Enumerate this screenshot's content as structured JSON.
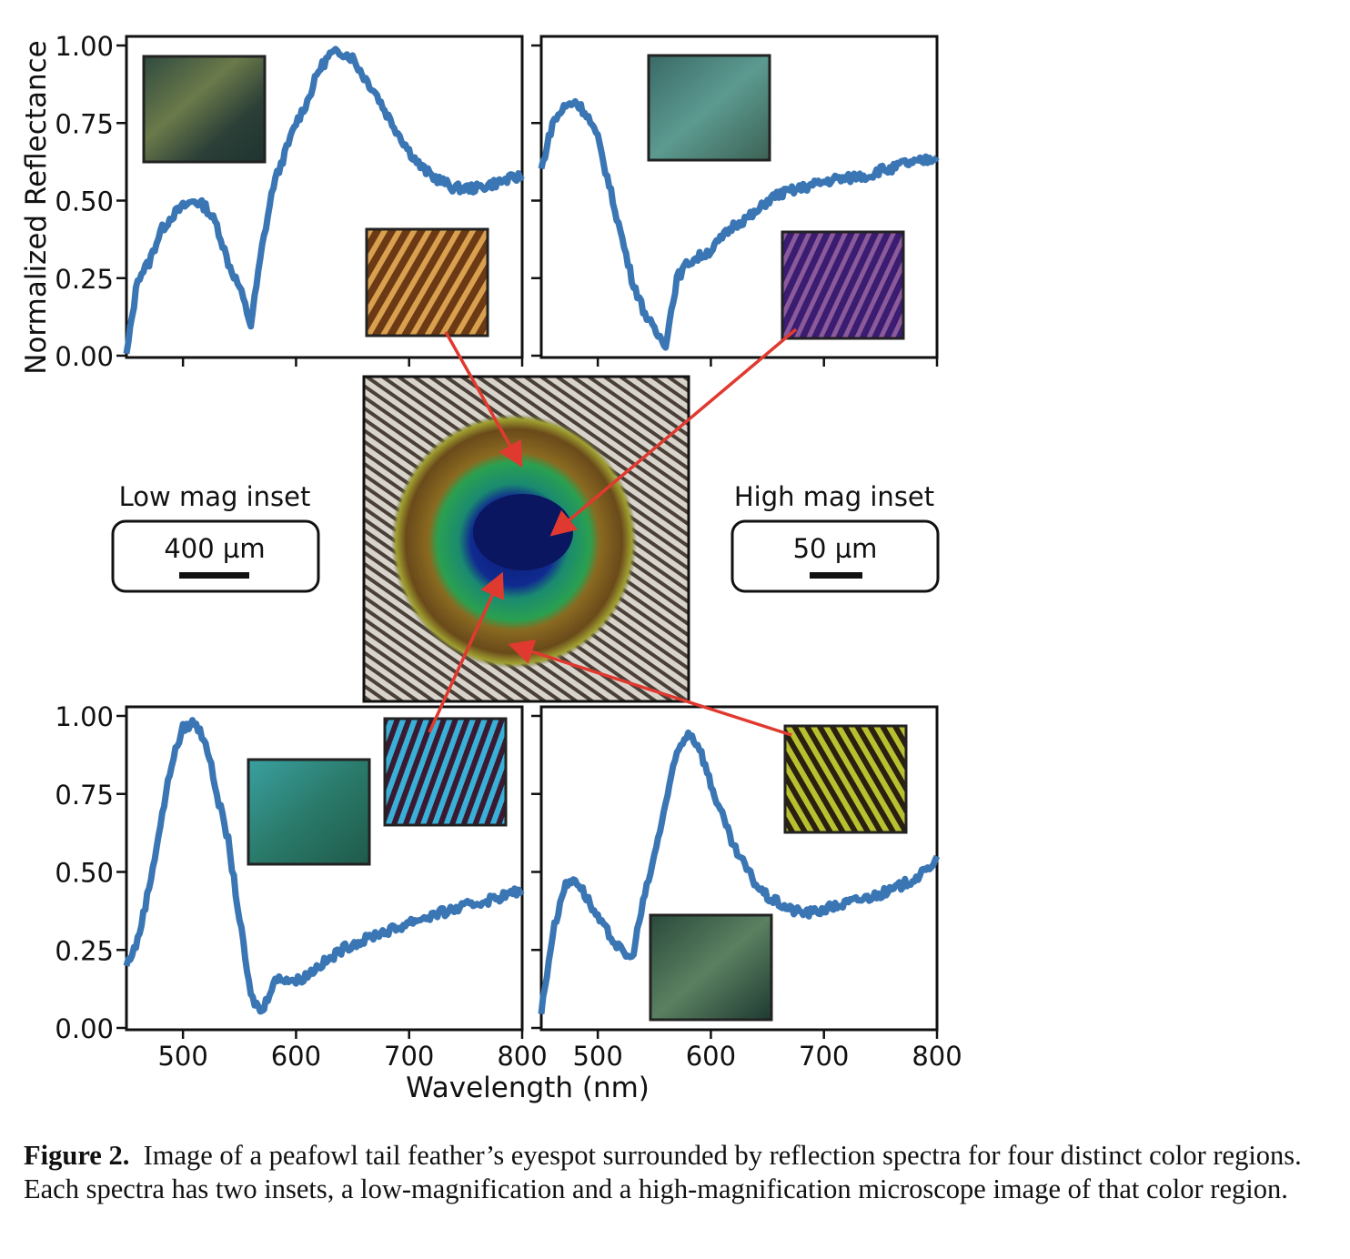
{
  "figure": {
    "center_image": "peafowl tail feather eyespot photograph",
    "low_mag": {
      "title": "Low mag inset",
      "scale": "400 µm"
    },
    "high_mag": {
      "title": "High mag inset",
      "scale": "50 µm"
    },
    "colors": {
      "line": "#3a76b4",
      "arrow": "#e03a30"
    }
  },
  "caption": {
    "label": "Figure 2.",
    "text": "Image of a peafowl tail feather’s eyespot surrounded by reflection spectra for four distinct color regions. Each spectra has two insets, a low-magnification and a high-magnification microscope image of that color region."
  },
  "chart_data": {
    "type": "line",
    "xlabel": "Wavelength (nm)",
    "ylabel": "Normalized Reflectance",
    "xlim": [
      450,
      800
    ],
    "ylim": [
      0,
      1.03
    ],
    "xticks": [
      "500",
      "600",
      "700",
      "800"
    ],
    "xtick_values": [
      500,
      600,
      700,
      800
    ],
    "yticks": [
      "0.00",
      "0.25",
      "0.50",
      "0.75",
      "1.00"
    ],
    "ytick_values": [
      0,
      0.25,
      0.5,
      0.75,
      1.0
    ],
    "x": [
      450,
      460,
      470,
      480,
      490,
      500,
      510,
      520,
      530,
      540,
      550,
      560,
      570,
      580,
      590,
      600,
      610,
      620,
      630,
      640,
      650,
      660,
      670,
      680,
      690,
      700,
      710,
      720,
      730,
      740,
      750,
      760,
      770,
      780,
      790,
      800
    ],
    "panels": [
      {
        "name": "top-left (orange/bronze region)",
        "values": [
          0.0,
          0.25,
          0.3,
          0.4,
          0.45,
          0.48,
          0.5,
          0.48,
          0.42,
          0.3,
          0.22,
          0.1,
          0.35,
          0.55,
          0.65,
          0.75,
          0.82,
          0.92,
          0.97,
          0.98,
          0.96,
          0.9,
          0.85,
          0.78,
          0.72,
          0.66,
          0.61,
          0.58,
          0.56,
          0.54,
          0.54,
          0.54,
          0.55,
          0.56,
          0.57,
          0.58
        ]
      },
      {
        "name": "top-right (blue/purple center)",
        "values": [
          0.6,
          0.75,
          0.8,
          0.82,
          0.78,
          0.7,
          0.55,
          0.4,
          0.25,
          0.15,
          0.08,
          0.04,
          0.25,
          0.3,
          0.32,
          0.34,
          0.38,
          0.42,
          0.44,
          0.46,
          0.5,
          0.52,
          0.53,
          0.54,
          0.55,
          0.56,
          0.57,
          0.57,
          0.58,
          0.58,
          0.6,
          0.6,
          0.62,
          0.62,
          0.63,
          0.64
        ]
      },
      {
        "name": "bottom-left (turquoise/green ring)",
        "values": [
          0.2,
          0.28,
          0.45,
          0.65,
          0.85,
          0.96,
          0.98,
          0.92,
          0.75,
          0.6,
          0.35,
          0.1,
          0.05,
          0.15,
          0.16,
          0.15,
          0.17,
          0.2,
          0.22,
          0.25,
          0.27,
          0.28,
          0.3,
          0.31,
          0.32,
          0.34,
          0.35,
          0.36,
          0.37,
          0.38,
          0.39,
          0.4,
          0.41,
          0.42,
          0.43,
          0.44
        ]
      },
      {
        "name": "bottom-right (yellow/green outer ring)",
        "values": [
          0.05,
          0.3,
          0.45,
          0.48,
          0.42,
          0.35,
          0.3,
          0.25,
          0.22,
          0.4,
          0.55,
          0.72,
          0.88,
          0.95,
          0.9,
          0.78,
          0.68,
          0.58,
          0.52,
          0.46,
          0.42,
          0.4,
          0.38,
          0.37,
          0.37,
          0.38,
          0.39,
          0.4,
          0.41,
          0.42,
          0.43,
          0.44,
          0.46,
          0.48,
          0.5,
          0.55
        ]
      }
    ]
  }
}
